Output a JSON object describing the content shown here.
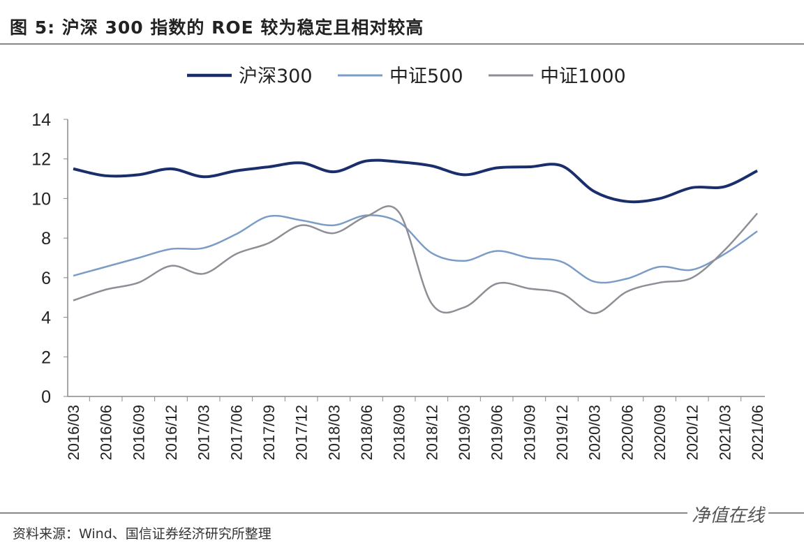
{
  "title": "图  5:  沪深 300 指数的 ROE 较为稳定且相对较高",
  "source": "资料来源：Wind、国信证券经济研究所整理",
  "watermark": "净值在线",
  "chart_data": {
    "type": "line",
    "title": "",
    "xlabel": "",
    "ylabel": "",
    "ylim": [
      0,
      14
    ],
    "yticks": [
      0,
      2,
      4,
      6,
      8,
      10,
      12,
      14
    ],
    "grid": false,
    "legend": "top",
    "categories": [
      "2016/03",
      "2016/06",
      "2016/09",
      "2016/12",
      "2017/03",
      "2017/06",
      "2017/09",
      "2017/12",
      "2018/03",
      "2018/06",
      "2018/09",
      "2018/12",
      "2019/03",
      "2019/06",
      "2019/09",
      "2019/12",
      "2020/03",
      "2020/06",
      "2020/09",
      "2020/12",
      "2021/03",
      "2021/06"
    ],
    "series": [
      {
        "name": "沪深300",
        "color": "#1a2e6b",
        "values": [
          11.5,
          11.15,
          11.2,
          11.5,
          11.1,
          11.4,
          11.6,
          11.8,
          11.35,
          11.9,
          11.85,
          11.65,
          11.2,
          11.55,
          11.6,
          11.65,
          10.35,
          9.85,
          10.0,
          10.55,
          10.6,
          11.4
        ]
      },
      {
        "name": "中证500",
        "color": "#7b9cc6",
        "values": [
          6.1,
          6.55,
          7.0,
          7.45,
          7.5,
          8.2,
          9.1,
          8.9,
          8.65,
          9.15,
          8.8,
          7.25,
          6.85,
          7.35,
          7.0,
          6.8,
          5.8,
          5.95,
          6.55,
          6.4,
          7.2,
          8.35
        ]
      },
      {
        "name": "中证1000",
        "color": "#8e8e96",
        "values": [
          4.85,
          5.4,
          5.75,
          6.6,
          6.2,
          7.2,
          7.75,
          8.65,
          8.25,
          9.1,
          9.3,
          4.7,
          4.5,
          5.7,
          5.45,
          5.2,
          4.2,
          5.3,
          5.75,
          6.0,
          7.4,
          9.25
        ]
      }
    ]
  }
}
